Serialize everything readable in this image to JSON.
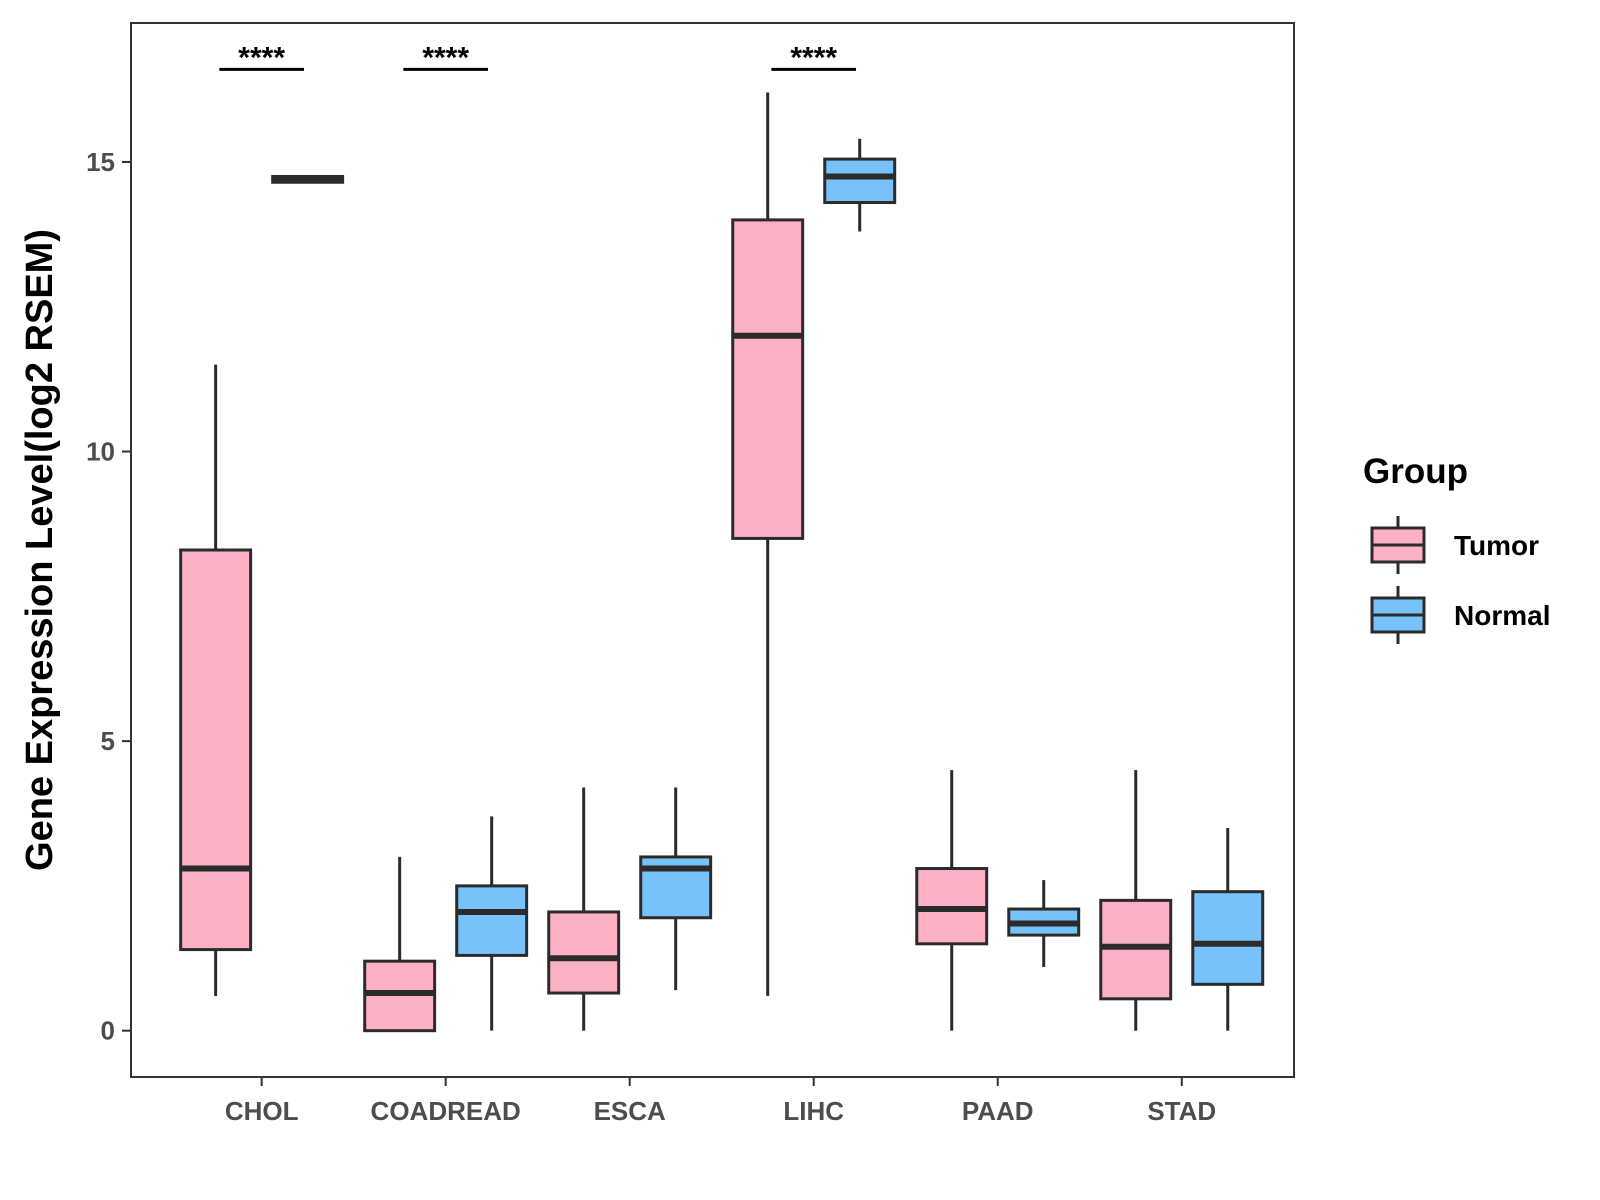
{
  "chart_data": {
    "type": "boxplot",
    "title": "",
    "xlabel": "",
    "ylabel": "Gene Expression Level(log2 RSEM)",
    "ylim": [
      -0.8,
      17.4
    ],
    "yticks": [
      0,
      5,
      10,
      15
    ],
    "grid": false,
    "categories": [
      "CHOL",
      "COADREAD",
      "ESCA",
      "LIHC",
      "PAAD",
      "STAD"
    ],
    "legend": {
      "title": "Group",
      "position": "right",
      "entries": [
        {
          "name": "Tumor",
          "color": "#FBB0C4"
        },
        {
          "name": "Normal",
          "color": "#77C2FA"
        }
      ]
    },
    "series": [
      {
        "name": "Tumor",
        "color": "#FBB0C4",
        "boxes": [
          {
            "category": "CHOL",
            "min": 0.6,
            "q1": 1.4,
            "median": 2.8,
            "q3": 8.3,
            "max": 11.5
          },
          {
            "category": "COADREAD",
            "min": 0.0,
            "q1": 0.0,
            "median": 0.65,
            "q3": 1.2,
            "max": 3.0
          },
          {
            "category": "ESCA",
            "min": 0.0,
            "q1": 0.65,
            "median": 1.25,
            "q3": 2.05,
            "max": 4.2
          },
          {
            "category": "LIHC",
            "min": 0.6,
            "q1": 8.5,
            "median": 12.0,
            "q3": 14.0,
            "max": 16.2
          },
          {
            "category": "PAAD",
            "min": 0.0,
            "q1": 1.5,
            "median": 2.1,
            "q3": 2.8,
            "max": 4.5
          },
          {
            "category": "STAD",
            "min": 0.0,
            "q1": 0.55,
            "median": 1.45,
            "q3": 2.25,
            "max": 4.5
          }
        ]
      },
      {
        "name": "Normal",
        "color": "#77C2FA",
        "boxes": [
          {
            "category": "CHOL",
            "min": 14.65,
            "q1": 14.65,
            "median": 14.7,
            "q3": 14.75,
            "max": 14.75
          },
          {
            "category": "COADREAD",
            "min": 0.0,
            "q1": 1.3,
            "median": 2.05,
            "q3": 2.5,
            "max": 3.7
          },
          {
            "category": "ESCA",
            "min": 0.7,
            "q1": 1.95,
            "median": 2.8,
            "q3": 3.0,
            "max": 4.2
          },
          {
            "category": "LIHC",
            "min": 13.8,
            "q1": 14.3,
            "median": 14.75,
            "q3": 15.05,
            "max": 15.4
          },
          {
            "category": "PAAD",
            "min": 1.1,
            "q1": 1.65,
            "median": 1.85,
            "q3": 2.1,
            "max": 2.6
          },
          {
            "category": "STAD",
            "min": 0.0,
            "q1": 0.8,
            "median": 1.5,
            "q3": 2.4,
            "max": 3.5
          }
        ]
      }
    ],
    "annotations": [
      {
        "category": "CHOL",
        "label": "****",
        "y": 16.6
      },
      {
        "category": "COADREAD",
        "label": "****",
        "y": 16.6
      },
      {
        "category": "LIHC",
        "label": "****",
        "y": 16.6
      }
    ]
  }
}
